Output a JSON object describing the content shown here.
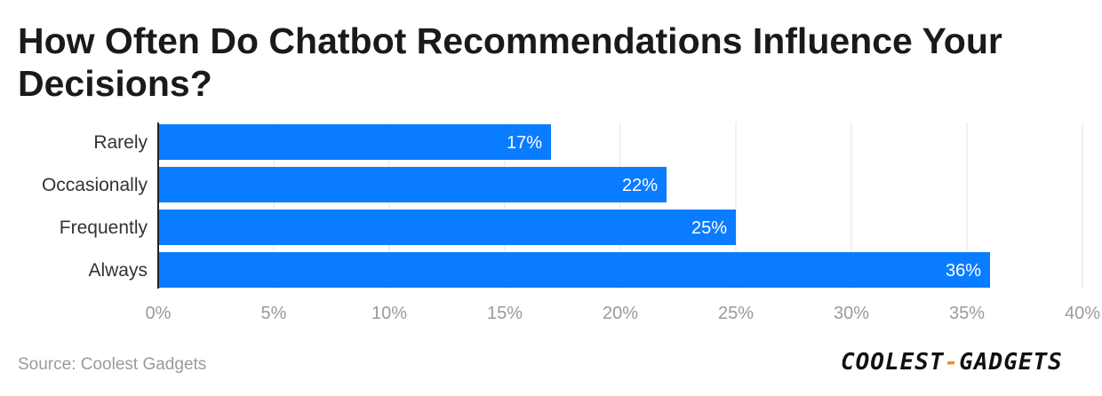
{
  "title": "How Often Do Chatbot Recommendations Influence Your Decisions?",
  "source": "Source: Coolest Gadgets",
  "logo": {
    "left": "COOLEST",
    "dash": "-",
    "right": "GADGETS"
  },
  "colors": {
    "bar": "#0a7cff",
    "grid": "#e3e3e3",
    "tick_text": "#9a9a9a",
    "label_text": "#333333"
  },
  "chart_data": {
    "type": "bar",
    "orientation": "horizontal",
    "categories": [
      "Rarely",
      "Occasionally",
      "Frequently",
      "Always"
    ],
    "values": [
      17,
      22,
      25,
      36
    ],
    "data_labels": [
      "17%",
      "22%",
      "25%",
      "36%"
    ],
    "xlim": [
      0,
      40
    ],
    "xticks": [
      0,
      5,
      10,
      15,
      20,
      25,
      30,
      35,
      40
    ],
    "xtick_labels": [
      "0%",
      "5%",
      "10%",
      "15%",
      "20%",
      "25%",
      "30%",
      "35%",
      "40%"
    ],
    "grid": true,
    "legend": "none"
  }
}
